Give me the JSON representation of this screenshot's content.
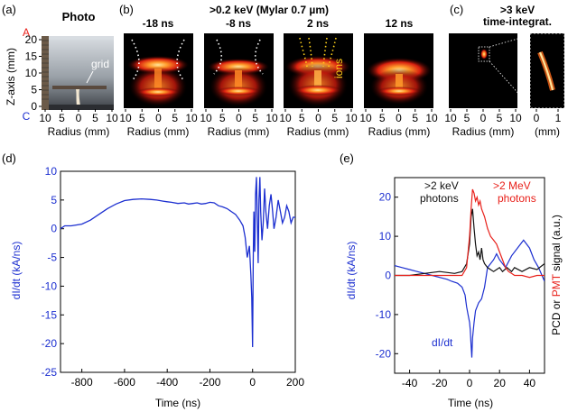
{
  "panel_a": {
    "label": "(a)",
    "title": "Photo",
    "y_label": "Z-axis (mm)",
    "y_ticks": [
      "0",
      "5",
      "10",
      "15",
      "20"
    ],
    "anode_mark": "A",
    "cathode_mark": "C",
    "grid_annotation": "grid",
    "x_label": "Radius (mm)",
    "x_ticks": [
      "10",
      "5",
      "0",
      "5",
      "10"
    ],
    "accent_color": "#e8201a"
  },
  "panel_b": {
    "label": "(b)",
    "title": ">0.2 keV (Mylar 0.7 µm)",
    "frames": [
      {
        "time": "-18 ns"
      },
      {
        "time": "-8 ns"
      },
      {
        "time": "2 ns"
      },
      {
        "time": "12 ns"
      }
    ],
    "ions_annotation": "ions",
    "x_label": "Radius (mm)",
    "x_ticks": [
      "10",
      "5",
      "0",
      "5",
      "10"
    ],
    "ions_color": "#ffd21a"
  },
  "panel_c": {
    "label": "(c)",
    "title_line1": ">3 keV",
    "title_line2": "time-integrat.",
    "x_label": "Radius (mm)",
    "x_ticks": [
      "10",
      "5",
      "0",
      "5",
      "10"
    ],
    "zoom_x_label": "(mm)",
    "zoom_x_ticks": [
      "0",
      "1"
    ]
  },
  "chart_data": [
    {
      "id": "d",
      "panel_label": "(d)",
      "type": "line",
      "xlabel": "Time (ns)",
      "ylabel": "dI/dt (kA/ns)",
      "xlim": [
        -900,
        200
      ],
      "ylim": [
        -25,
        10
      ],
      "xticks": [
        -800,
        -600,
        -400,
        -200,
        0,
        200
      ],
      "yticks": [
        -25,
        -20,
        -15,
        -10,
        -5,
        0,
        5,
        10
      ],
      "series": [
        {
          "name": "dI/dt",
          "color": "#1c2fd0",
          "x": [
            -900,
            -880,
            -850,
            -800,
            -760,
            -720,
            -680,
            -640,
            -600,
            -560,
            -520,
            -480,
            -450,
            -420,
            -400,
            -380,
            -350,
            -320,
            -300,
            -280,
            -260,
            -240,
            -220,
            -200,
            -180,
            -160,
            -140,
            -120,
            -100,
            -80,
            -60,
            -45,
            -35,
            -25,
            -15,
            -8,
            -4,
            0,
            3,
            6,
            10,
            14,
            18,
            22,
            26,
            30,
            34,
            38,
            44,
            50,
            56,
            62,
            70,
            78,
            86,
            94,
            100,
            110,
            120,
            130,
            140,
            150,
            160,
            170,
            180,
            190,
            200
          ],
          "y": [
            0,
            0.5,
            0.5,
            0.8,
            1.5,
            2.5,
            3.5,
            4.3,
            4.9,
            5.1,
            5.2,
            5.1,
            5.0,
            4.8,
            4.7,
            4.6,
            4.4,
            4.5,
            4.3,
            4.4,
            4.5,
            4.3,
            4.4,
            4.6,
            4.5,
            4.0,
            3.8,
            3.5,
            3.0,
            2.5,
            1.5,
            0.5,
            -1.5,
            -5,
            -3,
            -8,
            -12,
            -20.6,
            -6,
            3,
            -4,
            6,
            9,
            2,
            -6,
            5,
            9,
            3,
            -2,
            1,
            7,
            3,
            0,
            4,
            6,
            3,
            0,
            2,
            5,
            3,
            1,
            2,
            4,
            3,
            1,
            2,
            2
          ]
        }
      ]
    },
    {
      "id": "e",
      "panel_label": "(e)",
      "type": "line",
      "xlabel": "Time (ns)",
      "ylabel": "dI/dt (kA/ns)",
      "ylabel_right_parts": [
        "PCD or ",
        "PMT",
        " signal (a.u.)"
      ],
      "xlim": [
        -50,
        50
      ],
      "ylim": [
        -25,
        25
      ],
      "xticks": [
        -40,
        -20,
        0,
        20,
        40
      ],
      "yticks": [
        -20,
        -10,
        0,
        10,
        20
      ],
      "annotations": {
        "xray_line1": ">2 keV",
        "xray_line2": "photons",
        "pmt_line1": ">2 MeV",
        "pmt_line2": "photons",
        "didt": "dI/dt"
      },
      "series": [
        {
          "name": "dI/dt",
          "color": "#1c2fd0",
          "x": [
            -50,
            -45,
            -40,
            -35,
            -30,
            -25,
            -20,
            -15,
            -12,
            -8,
            -5,
            -3,
            -2,
            -1,
            0,
            0.5,
            1,
            1.5,
            2,
            3,
            4,
            6,
            8,
            10,
            12,
            14,
            16,
            18,
            20,
            24,
            28,
            32,
            36,
            40,
            43,
            46,
            50
          ],
          "y": [
            2.5,
            2,
            1.5,
            1,
            0.5,
            0,
            -0.5,
            -1,
            -1.5,
            -2,
            -3,
            -5,
            -8,
            -10,
            -12,
            -14,
            -18,
            -21,
            -16,
            -12,
            -9,
            -7,
            -6,
            -3,
            2,
            3,
            4,
            5.5,
            4,
            2,
            5,
            7,
            9,
            7,
            4,
            2,
            -1.5
          ]
        },
        {
          "name": ">2 keV photons",
          "color": "#111111",
          "x": [
            -50,
            -40,
            -30,
            -20,
            -10,
            -5,
            -2,
            0,
            1,
            2,
            3,
            4,
            5,
            6,
            7,
            8,
            9,
            10,
            12,
            14,
            16,
            18,
            20,
            22,
            25,
            28,
            30,
            35,
            40,
            45,
            50
          ],
          "y": [
            0,
            0,
            0.5,
            1,
            0.5,
            1,
            3,
            8,
            15,
            17,
            12,
            8,
            5,
            6,
            4,
            7,
            4,
            3,
            2,
            1.5,
            1,
            1.5,
            2,
            1,
            2,
            1,
            2,
            1,
            2,
            1.5,
            3
          ]
        },
        {
          "name": ">2 MeV photons",
          "color": "#e8201a",
          "x": [
            -50,
            -40,
            -30,
            -20,
            -10,
            -5,
            -2,
            0,
            1,
            2,
            3,
            4,
            5,
            6,
            7,
            8,
            10,
            12,
            14,
            16,
            18,
            20,
            22,
            24,
            26,
            28,
            30,
            35,
            40,
            45,
            50
          ],
          "y": [
            0,
            0,
            0,
            0,
            0,
            0,
            2,
            10,
            17,
            22,
            21,
            19,
            20,
            18,
            19,
            17,
            15,
            12,
            10,
            9,
            8,
            6,
            4,
            2,
            1,
            0.5,
            0,
            0,
            -0.5,
            0,
            0
          ]
        }
      ]
    }
  ]
}
